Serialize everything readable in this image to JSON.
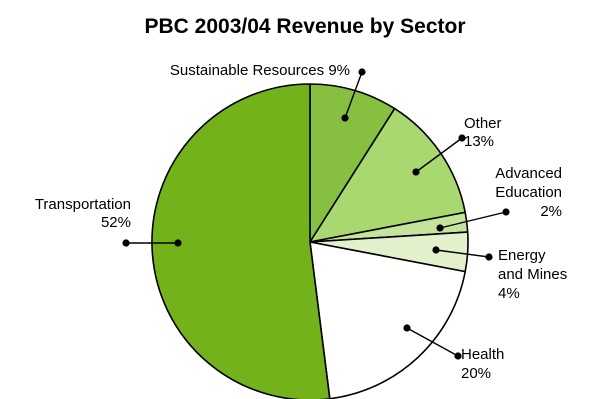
{
  "chart_data": {
    "type": "pie",
    "title": "PBC 2003/04 Revenue by Sector",
    "slices": [
      {
        "label_lines": [
          "Sustainable Resources  9%"
        ],
        "value": 9,
        "color": "#87c040"
      },
      {
        "label_lines": [
          "Other",
          "13%"
        ],
        "value": 13,
        "color": "#a9d770"
      },
      {
        "label_lines": [
          "Advanced",
          "Education",
          "2%"
        ],
        "value": 2,
        "color": "#c4e39c"
      },
      {
        "label_lines": [
          "Energy",
          "and Mines",
          "4%"
        ],
        "value": 4,
        "color": "#e2f1cc"
      },
      {
        "label_lines": [
          "Health",
          "20%"
        ],
        "value": 20,
        "color": "#ffffff"
      },
      {
        "label_lines": [
          "Transportation",
          "52%"
        ],
        "value": 52,
        "color": "#74b21c"
      }
    ],
    "start_angle_deg": 0,
    "direction": "clockwise"
  }
}
